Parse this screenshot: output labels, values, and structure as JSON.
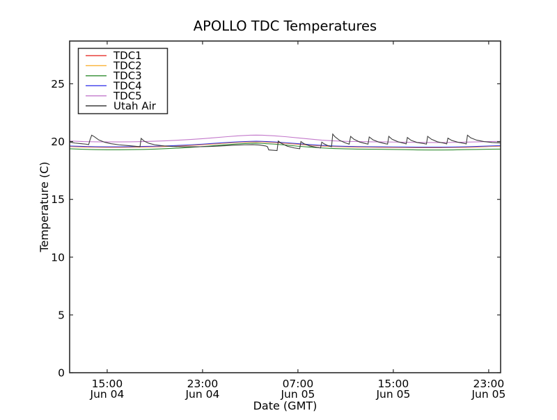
{
  "figure": {
    "background": "#ffffff",
    "frame_color": "#2a2a2a"
  },
  "chart_data": {
    "type": "line",
    "title": "APOLLO TDC Temperatures",
    "xlabel": "Date (GMT)",
    "ylabel": "Temperature (C)",
    "grid": false,
    "legend_position": "upper left",
    "x_unit": "hours since Jun 04 00:00 GMT",
    "xlim": [
      11.85,
      48.0
    ],
    "ylim": [
      0,
      28.7
    ],
    "yticks": [
      0,
      5,
      10,
      15,
      20,
      25
    ],
    "xticks": [
      {
        "pos": 15,
        "time": "15:00",
        "date": "Jun 04"
      },
      {
        "pos": 23,
        "time": "23:00",
        "date": "Jun 04"
      },
      {
        "pos": 31,
        "time": "07:00",
        "date": "Jun 05"
      },
      {
        "pos": 39,
        "time": "15:00",
        "date": "Jun 05"
      },
      {
        "pos": 47,
        "time": "23:00",
        "date": "Jun 05"
      }
    ],
    "series": [
      {
        "name": "TDC1",
        "color": "#e8413c",
        "points": [
          [
            11.85,
            19.57
          ],
          [
            13,
            19.53
          ],
          [
            14,
            19.51
          ],
          [
            15,
            19.5
          ],
          [
            16,
            19.5
          ],
          [
            17,
            19.51
          ],
          [
            18,
            19.53
          ],
          [
            19,
            19.55
          ],
          [
            20,
            19.58
          ],
          [
            21,
            19.62
          ],
          [
            22,
            19.67
          ],
          [
            23,
            19.73
          ],
          [
            24,
            19.8
          ],
          [
            25,
            19.87
          ],
          [
            26,
            19.93
          ],
          [
            27,
            19.97
          ],
          [
            27.5,
            19.98
          ],
          [
            28,
            19.97
          ],
          [
            29,
            19.92
          ],
          [
            30,
            19.85
          ],
          [
            31,
            19.77
          ],
          [
            32,
            19.69
          ],
          [
            33,
            19.62
          ],
          [
            34,
            19.57
          ],
          [
            35,
            19.54
          ],
          [
            36,
            19.52
          ],
          [
            37,
            19.51
          ],
          [
            38,
            19.5
          ],
          [
            39,
            19.49
          ],
          [
            40,
            19.48
          ],
          [
            41,
            19.47
          ],
          [
            42,
            19.47
          ],
          [
            43,
            19.47
          ],
          [
            44,
            19.48
          ],
          [
            45,
            19.5
          ],
          [
            46,
            19.53
          ],
          [
            47,
            19.57
          ],
          [
            48,
            19.6
          ]
        ]
      },
      {
        "name": "TDC2",
        "color": "#f9b234",
        "points": [
          [
            11.85,
            19.59
          ],
          [
            13,
            19.55
          ],
          [
            14,
            19.53
          ],
          [
            15,
            19.52
          ],
          [
            16,
            19.52
          ],
          [
            17,
            19.53
          ],
          [
            18,
            19.55
          ],
          [
            19,
            19.57
          ],
          [
            20,
            19.6
          ],
          [
            21,
            19.64
          ],
          [
            22,
            19.69
          ],
          [
            23,
            19.75
          ],
          [
            24,
            19.82
          ],
          [
            25,
            19.89
          ],
          [
            26,
            19.95
          ],
          [
            27,
            19.99
          ],
          [
            27.5,
            20.0
          ],
          [
            28,
            19.99
          ],
          [
            29,
            19.94
          ],
          [
            30,
            19.87
          ],
          [
            31,
            19.79
          ],
          [
            32,
            19.71
          ],
          [
            33,
            19.64
          ],
          [
            34,
            19.59
          ],
          [
            35,
            19.56
          ],
          [
            36,
            19.54
          ],
          [
            37,
            19.53
          ],
          [
            38,
            19.52
          ],
          [
            39,
            19.51
          ],
          [
            40,
            19.5
          ],
          [
            41,
            19.49
          ],
          [
            42,
            19.49
          ],
          [
            43,
            19.49
          ],
          [
            44,
            19.5
          ],
          [
            45,
            19.52
          ],
          [
            46,
            19.55
          ],
          [
            47,
            19.59
          ],
          [
            48,
            19.62
          ]
        ]
      },
      {
        "name": "TDC3",
        "color": "#2e8b2e",
        "points": [
          [
            11.85,
            19.38
          ],
          [
            13,
            19.33
          ],
          [
            14,
            19.3
          ],
          [
            15,
            19.29
          ],
          [
            16,
            19.29
          ],
          [
            17,
            19.3
          ],
          [
            18,
            19.32
          ],
          [
            19,
            19.35
          ],
          [
            20,
            19.39
          ],
          [
            21,
            19.44
          ],
          [
            22,
            19.5
          ],
          [
            23,
            19.57
          ],
          [
            24,
            19.65
          ],
          [
            25,
            19.73
          ],
          [
            26,
            19.8
          ],
          [
            27,
            19.85
          ],
          [
            27.5,
            19.86
          ],
          [
            28,
            19.84
          ],
          [
            29,
            19.78
          ],
          [
            30,
            19.7
          ],
          [
            31,
            19.6
          ],
          [
            32,
            19.52
          ],
          [
            33,
            19.45
          ],
          [
            34,
            19.4
          ],
          [
            35,
            19.37
          ],
          [
            36,
            19.35
          ],
          [
            37,
            19.34
          ],
          [
            38,
            19.33
          ],
          [
            39,
            19.32
          ],
          [
            40,
            19.3
          ],
          [
            41,
            19.28
          ],
          [
            42,
            19.27
          ],
          [
            43,
            19.27
          ],
          [
            44,
            19.28
          ],
          [
            45,
            19.3
          ],
          [
            46,
            19.32
          ],
          [
            47,
            19.34
          ],
          [
            48,
            19.35
          ]
        ]
      },
      {
        "name": "TDC4",
        "color": "#3d3deb",
        "points": [
          [
            11.85,
            19.62
          ],
          [
            13,
            19.58
          ],
          [
            14,
            19.56
          ],
          [
            15,
            19.55
          ],
          [
            16,
            19.55
          ],
          [
            17,
            19.56
          ],
          [
            18,
            19.58
          ],
          [
            19,
            19.6
          ],
          [
            20,
            19.63
          ],
          [
            21,
            19.67
          ],
          [
            22,
            19.72
          ],
          [
            23,
            19.78
          ],
          [
            24,
            19.85
          ],
          [
            25,
            19.92
          ],
          [
            26,
            19.98
          ],
          [
            27,
            20.02
          ],
          [
            27.5,
            20.03
          ],
          [
            28,
            20.02
          ],
          [
            29,
            19.97
          ],
          [
            30,
            19.9
          ],
          [
            31,
            19.82
          ],
          [
            32,
            19.74
          ],
          [
            33,
            19.67
          ],
          [
            34,
            19.62
          ],
          [
            35,
            19.59
          ],
          [
            36,
            19.57
          ],
          [
            37,
            19.56
          ],
          [
            38,
            19.55
          ],
          [
            39,
            19.54
          ],
          [
            40,
            19.53
          ],
          [
            41,
            19.52
          ],
          [
            42,
            19.52
          ],
          [
            43,
            19.52
          ],
          [
            44,
            19.53
          ],
          [
            45,
            19.55
          ],
          [
            46,
            19.58
          ],
          [
            47,
            19.62
          ],
          [
            48,
            19.65
          ]
        ]
      },
      {
        "name": "TDC5",
        "color": "#c379cb",
        "points": [
          [
            11.85,
            20.05
          ],
          [
            13,
            20.0
          ],
          [
            14,
            19.98
          ],
          [
            15,
            19.97
          ],
          [
            16,
            19.97
          ],
          [
            17,
            19.98
          ],
          [
            18,
            20.0
          ],
          [
            19,
            20.03
          ],
          [
            20,
            20.07
          ],
          [
            21,
            20.12
          ],
          [
            22,
            20.18
          ],
          [
            23,
            20.25
          ],
          [
            24,
            20.33
          ],
          [
            25,
            20.42
          ],
          [
            26,
            20.5
          ],
          [
            27,
            20.55
          ],
          [
            27.5,
            20.56
          ],
          [
            28,
            20.55
          ],
          [
            29,
            20.5
          ],
          [
            30,
            20.42
          ],
          [
            31,
            20.32
          ],
          [
            32,
            20.22
          ],
          [
            33,
            20.12
          ],
          [
            34,
            20.06
          ],
          [
            35,
            20.02
          ],
          [
            36,
            20.0
          ],
          [
            37,
            19.98
          ],
          [
            38,
            19.97
          ],
          [
            39,
            19.96
          ],
          [
            40,
            19.94
          ],
          [
            41,
            19.93
          ],
          [
            42,
            19.92
          ],
          [
            43,
            19.92
          ],
          [
            44,
            19.93
          ],
          [
            45,
            19.95
          ],
          [
            46,
            19.97
          ],
          [
            47,
            20.0
          ],
          [
            48,
            20.02
          ]
        ]
      },
      {
        "name": "Utah Air",
        "color": "#3c3c3c",
        "points": [
          [
            11.85,
            19.95
          ],
          [
            12.3,
            19.87
          ],
          [
            12.8,
            19.82
          ],
          [
            13.2,
            19.78
          ],
          [
            13.45,
            19.74
          ],
          [
            13.55,
            20.12
          ],
          [
            13.7,
            20.55
          ],
          [
            13.9,
            20.44
          ],
          [
            14.3,
            20.14
          ],
          [
            14.8,
            19.94
          ],
          [
            15.3,
            19.82
          ],
          [
            16.0,
            19.72
          ],
          [
            16.8,
            19.65
          ],
          [
            17.5,
            19.58
          ],
          [
            17.75,
            19.55
          ],
          [
            17.85,
            20.28
          ],
          [
            18.1,
            20.04
          ],
          [
            18.5,
            19.85
          ],
          [
            19.0,
            19.72
          ],
          [
            19.8,
            19.62
          ],
          [
            20.5,
            19.58
          ],
          [
            21.5,
            19.55
          ],
          [
            22.5,
            19.55
          ],
          [
            23.5,
            19.57
          ],
          [
            24.5,
            19.62
          ],
          [
            25.5,
            19.68
          ],
          [
            26.5,
            19.72
          ],
          [
            27.2,
            19.73
          ],
          [
            27.8,
            19.7
          ],
          [
            28.3,
            19.62
          ],
          [
            28.45,
            19.55
          ],
          [
            28.55,
            19.28
          ],
          [
            28.9,
            19.25
          ],
          [
            29.25,
            19.22
          ],
          [
            29.35,
            20.05
          ],
          [
            29.6,
            19.85
          ],
          [
            30.1,
            19.6
          ],
          [
            30.7,
            19.45
          ],
          [
            31.15,
            19.38
          ],
          [
            31.25,
            20.0
          ],
          [
            31.5,
            19.82
          ],
          [
            32.0,
            19.62
          ],
          [
            32.6,
            19.5
          ],
          [
            32.9,
            19.45
          ],
          [
            33.0,
            19.95
          ],
          [
            33.2,
            19.8
          ],
          [
            33.5,
            19.65
          ],
          [
            33.82,
            19.55
          ],
          [
            33.92,
            20.65
          ],
          [
            34.1,
            20.42
          ],
          [
            34.5,
            20.1
          ],
          [
            35.0,
            19.88
          ],
          [
            35.3,
            19.78
          ],
          [
            35.42,
            20.45
          ],
          [
            35.7,
            20.2
          ],
          [
            36.2,
            19.95
          ],
          [
            36.7,
            19.82
          ],
          [
            36.88,
            19.78
          ],
          [
            36.98,
            20.4
          ],
          [
            37.3,
            20.15
          ],
          [
            37.8,
            19.95
          ],
          [
            38.3,
            19.82
          ],
          [
            38.52,
            19.78
          ],
          [
            38.62,
            20.45
          ],
          [
            38.9,
            20.2
          ],
          [
            39.4,
            19.98
          ],
          [
            39.9,
            19.85
          ],
          [
            40.08,
            19.8
          ],
          [
            40.18,
            20.35
          ],
          [
            40.5,
            20.1
          ],
          [
            41.0,
            19.92
          ],
          [
            41.6,
            19.82
          ],
          [
            41.78,
            19.78
          ],
          [
            41.88,
            20.45
          ],
          [
            42.2,
            20.2
          ],
          [
            42.7,
            19.98
          ],
          [
            43.3,
            19.85
          ],
          [
            43.48,
            19.8
          ],
          [
            43.58,
            20.3
          ],
          [
            43.9,
            20.1
          ],
          [
            44.4,
            19.95
          ],
          [
            44.9,
            19.85
          ],
          [
            45.12,
            19.8
          ],
          [
            45.22,
            20.55
          ],
          [
            45.5,
            20.32
          ],
          [
            46.0,
            20.12
          ],
          [
            46.6,
            20.0
          ],
          [
            47.3,
            19.92
          ],
          [
            48.0,
            19.88
          ]
        ]
      }
    ]
  }
}
